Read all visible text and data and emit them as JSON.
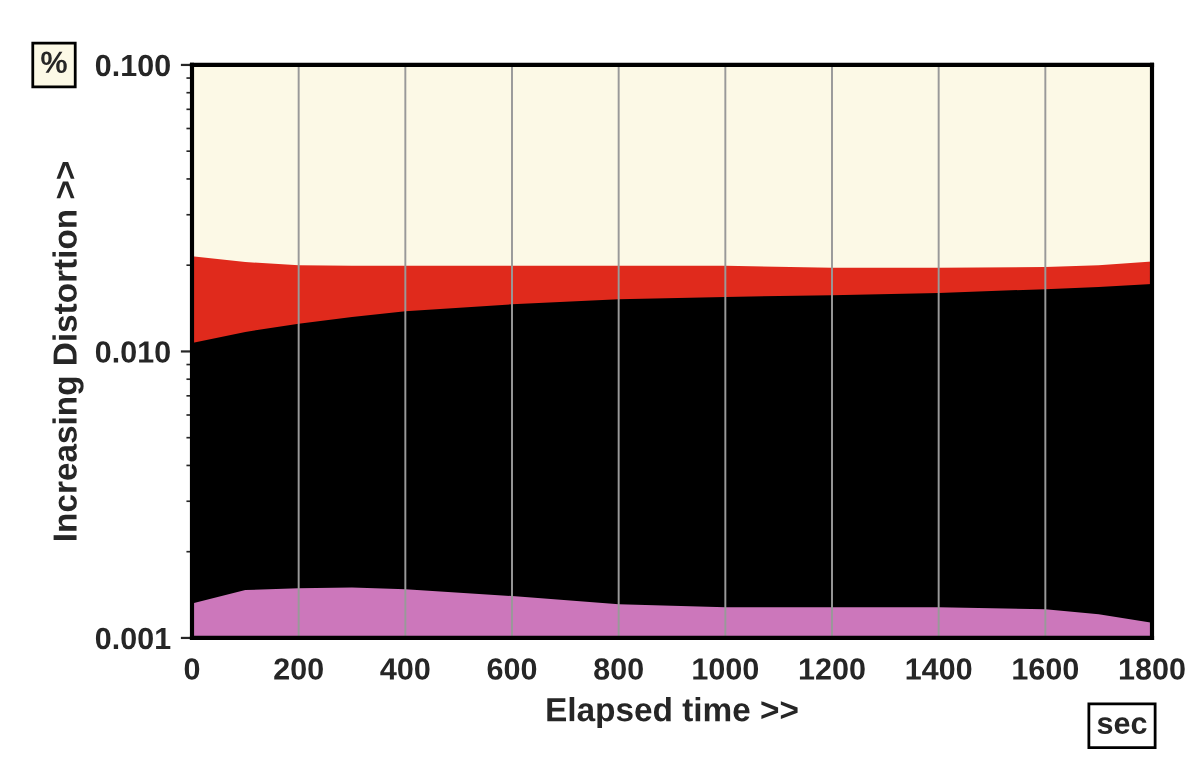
{
  "chart_data": {
    "type": "area",
    "xlabel": "Elapsed time >>",
    "ylabel": "Increasing Distortion >>",
    "annotations": [
      "%",
      "sec"
    ],
    "x": [
      0,
      100,
      200,
      300,
      400,
      600,
      800,
      1000,
      1200,
      1400,
      1600,
      1700,
      1800
    ],
    "series": [
      {
        "color": "#e02a1c",
        "values": [
          0.0215,
          0.0205,
          0.02,
          0.0199,
          0.0199,
          0.0199,
          0.0199,
          0.0199,
          0.0196,
          0.0196,
          0.0197,
          0.02,
          0.0206
        ]
      },
      {
        "color": "#000000",
        "values": [
          0.0107,
          0.0117,
          0.0125,
          0.0132,
          0.0138,
          0.0146,
          0.0152,
          0.0155,
          0.0157,
          0.016,
          0.0165,
          0.0168,
          0.0172
        ]
      },
      {
        "color": "#cc77bb",
        "values": [
          0.00132,
          0.00147,
          0.00149,
          0.0015,
          0.00148,
          0.0014,
          0.00131,
          0.00128,
          0.00128,
          0.00128,
          0.00126,
          0.00121,
          0.00113
        ]
      }
    ],
    "log": "y",
    "xlim": [
      0,
      1800
    ],
    "xticks": [
      0,
      200,
      400,
      600,
      800,
      1000,
      1200,
      1400,
      1600,
      1800
    ],
    "ylim": [
      0.001,
      0.1
    ],
    "yticks": [
      {
        "value": 0.001,
        "label": "0.001"
      },
      {
        "value": 0.01,
        "label": "0.010"
      },
      {
        "value": 0.1,
        "label": "0.100"
      }
    ],
    "grid": "x"
  }
}
